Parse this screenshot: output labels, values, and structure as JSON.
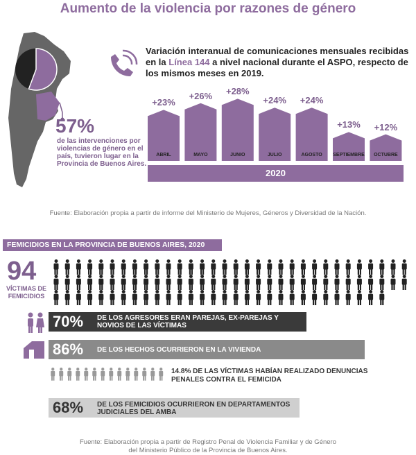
{
  "title": "Aumento de la violencia por razones de género",
  "map": {
    "percent": "57%",
    "description": "de las intervenciones por violencias de género en el país, tuvieron lugar en la Provincia de Buenos Aires."
  },
  "line144": {
    "title_part1": "Variación interanual de comunicaciones mensuales recibidas en la ",
    "title_highlight": "Línea 144",
    "title_part2": " a nivel nacional durante el ASPO, respecto de los mismos meses en 2019.",
    "year": "2020",
    "colors": {
      "bar": "#8e6c9e",
      "label": "#7d5f8e"
    }
  },
  "chart_data": {
    "type": "bar",
    "categories": [
      "ABRIL",
      "MAYO",
      "JUNIO",
      "JULIO",
      "AGOSTO",
      "SEPTIEMBRE",
      "OCTUBRE"
    ],
    "values": [
      23,
      26,
      28,
      24,
      24,
      13,
      12
    ],
    "labels": [
      "+23%",
      "+26%",
      "+28%",
      "+24%",
      "+24%",
      "+13%",
      "+12%"
    ],
    "xlabel": "2020",
    "ylabel": "",
    "ylim": [
      0,
      30
    ]
  },
  "source1": "Fuente: Elaboración propia a partir de informe del Ministerio de Mujeres, Géneros y Diversidad de la Nación.",
  "femicidios": {
    "header": "FEMICIDIOS EN LA PROVINCIA DE BUENOS AIRES, 2020",
    "count": "94",
    "count_label": "VÍCTIMAS DE FEMICIDIOS",
    "stats": [
      {
        "pct": "70%",
        "text": "DE LOS AGRESORES ERAN PAREJAS, EX-PAREJAS Y NOVIOS DE LAS VÍCTIMAS",
        "icon": "couple-icon",
        "share": 0.7
      },
      {
        "pct": "86%",
        "text": "DE LOS HECHOS OCURRIERON EN LA VIVIENDA",
        "icon": "house-icon",
        "share": 0.86
      },
      {
        "pct": "68%",
        "text": "DE LOS FEMICIDIOS OCURRIERON EN DEPARTAMENTOS JUDICIALES DEL AMBA",
        "share": 0.68
      }
    ],
    "denuncia_pct": "14.8%",
    "denuncia_text": " DE LAS VÍCTIMAS HABÍAN REALIZADO DENUNCIAS PENALES CONTRA EL FEMICIDA"
  },
  "source2_line1": "Fuente: Elaboración propia a partir de Registro Penal de Violencia Familiar y de Género",
  "source2_line2": "del Ministerio Público de la Provincia de Buenos Aires."
}
